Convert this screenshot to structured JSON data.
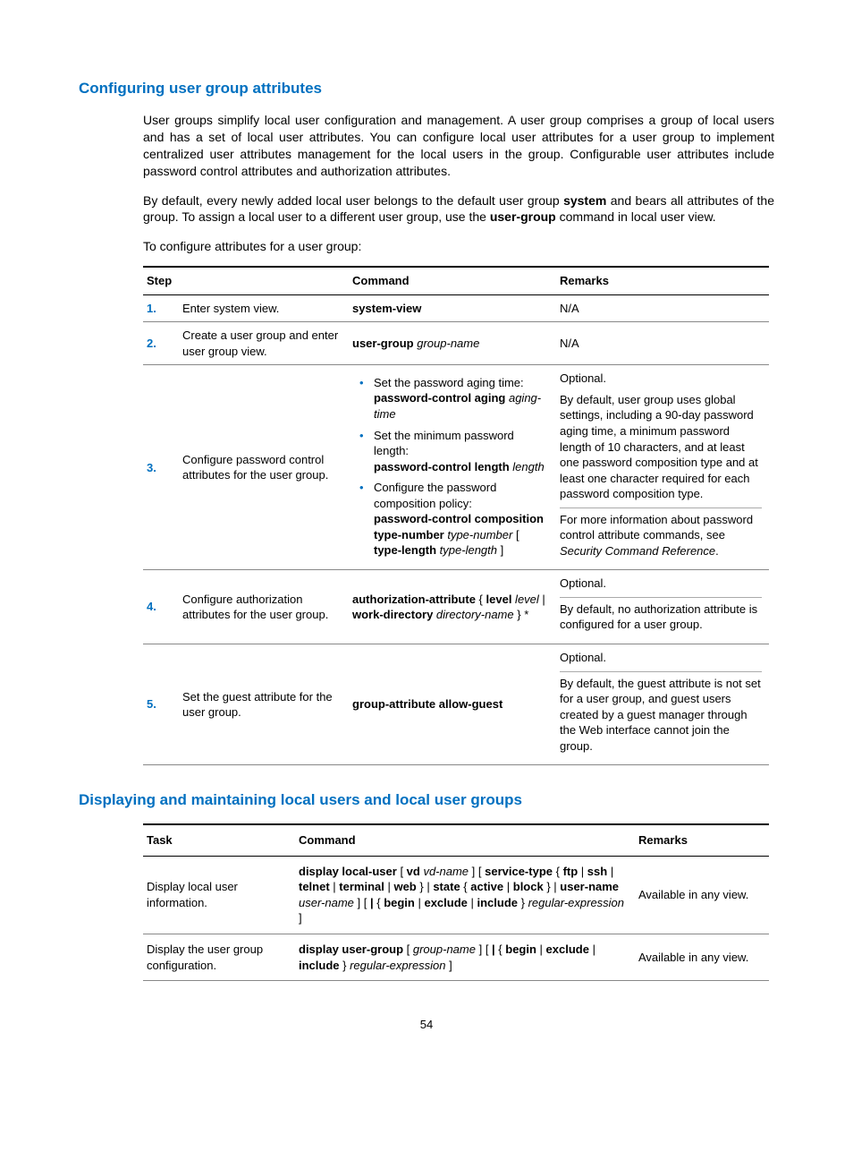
{
  "section1": {
    "title": "Configuring user group attributes",
    "p1a": "User groups simplify local user configuration and management. A user group comprises a group of local users and has a set of local user attributes. You can configure local user attributes for a user group to implement centralized user attributes management for the local users in the group. Configurable user attributes include password control attributes and authorization attributes.",
    "p2_pre": "By default, every newly added local user belongs to the default user group ",
    "p2_b1": "system",
    "p2_mid": " and bears all attributes of the group. To assign a local user to a different user group, use the ",
    "p2_b2": "user-group",
    "p2_post": " command in local user view.",
    "p3": "To configure attributes for a user group:"
  },
  "table1": {
    "headers": {
      "step": "Step",
      "command": "Command",
      "remarks": "Remarks"
    },
    "rows": {
      "r1": {
        "num": "1.",
        "step": "Enter system view.",
        "cmd": "system-view",
        "rem": "N/A"
      },
      "r2": {
        "num": "2.",
        "step": "Create a user group and enter user group view.",
        "cmd_b": "user-group ",
        "cmd_i": "group-name",
        "rem": "N/A"
      },
      "r3": {
        "num": "3.",
        "step": "Configure password control attributes for the user group.",
        "li1_pre": "Set the password aging time:",
        "li1_b": "password-control aging ",
        "li1_i": "aging-time",
        "li2_pre": "Set the minimum password length:",
        "li2_b": "password-control length ",
        "li2_i": "length",
        "li3_pre": "Configure the password composition policy:",
        "li3_b1": "password-control composition type-number ",
        "li3_i1": "type-number",
        "li3_mid": " [ ",
        "li3_b2": "type-length ",
        "li3_i2": "type-length",
        "li3_post": " ]",
        "rem1": "Optional.",
        "rem2": "By default, user group uses global settings, including a 90-day password aging time, a minimum password length of 10 characters, and at least one password composition type and at least one character required for each password composition type.",
        "rem3_pre": "For more information about password control attribute commands, see ",
        "rem3_i": "Security Command Reference",
        "rem3_post": "."
      },
      "r4": {
        "num": "4.",
        "step": "Configure authorization attributes for the user group.",
        "cmd_b1": "authorization-attribute",
        "cmd_t1": " { ",
        "cmd_b2": "level",
        "cmd_i1": " level",
        "cmd_t2": " | ",
        "cmd_b3": "work-directory",
        "cmd_i2": " directory-name",
        "cmd_t3": " } *",
        "rem1": "Optional.",
        "rem2": "By default, no authorization attribute is configured for a user group."
      },
      "r5": {
        "num": "5.",
        "step": "Set the guest attribute for the user group.",
        "cmd": "group-attribute allow-guest",
        "rem1": "Optional.",
        "rem2": "By default, the guest attribute is not set for a user group, and guest users created by a guest manager through the Web interface cannot join the group."
      }
    }
  },
  "section2": {
    "title": "Displaying and maintaining local users and local user groups"
  },
  "table2": {
    "headers": {
      "task": "Task",
      "command": "Command",
      "remarks": "Remarks"
    },
    "rows": {
      "r1": {
        "task": "Display local user information.",
        "b1": "display local-user",
        "t1": " [ ",
        "b2": "vd",
        "i1": " vd-name",
        "t2": " ] [ ",
        "b3": "service-type",
        "t3": " { ",
        "b4": "ftp",
        "t4": " | ",
        "b5": "ssh",
        "t5": " | ",
        "b6": "telnet",
        "t6": " | ",
        "b7": "terminal",
        "t7": " | ",
        "b8": "web",
        "t8": " } | ",
        "b9": "state",
        "t9": " { ",
        "b10": "active",
        "t10": " | ",
        "b11": "block",
        "t11": " } | ",
        "b12": "user-name",
        "i2": " user-name",
        "t12": " ] [ ",
        "b13": "|",
        "t13": " { ",
        "b14": "begin",
        "t14": " | ",
        "b15": "exclude",
        "t15": " | ",
        "b16": "include",
        "t16": " } ",
        "i3": "regular-expression",
        "t17": " ]",
        "rem": "Available in any view."
      },
      "r2": {
        "task": "Display the user group configuration.",
        "b1": "display user-group",
        "t1": " [ ",
        "i1": "group-name",
        "t2": " ] [ ",
        "b2": "|",
        "t3": " { ",
        "b3": "begin",
        "t4": " | ",
        "b4": "exclude",
        "t5": " | ",
        "b5": "include",
        "t6": " } ",
        "i2": "regular-expression",
        "t7": " ]",
        "rem": "Available in any view."
      }
    }
  },
  "page": "54"
}
